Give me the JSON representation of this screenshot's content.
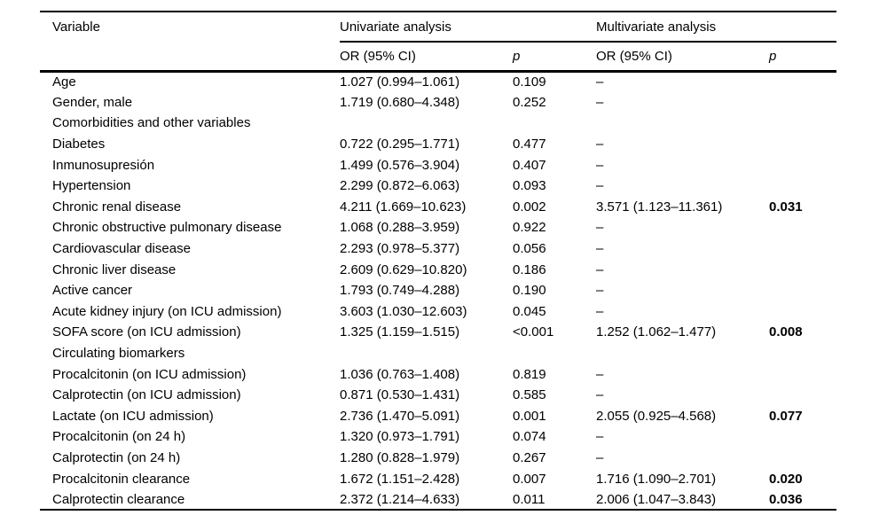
{
  "page": {
    "background": "#ffffff",
    "text_color": "#000000",
    "rule_color": "#000000"
  },
  "table": {
    "header": {
      "variable": "Variable",
      "univariate_group": "Univariate analysis",
      "multivariate_group": "Multivariate analysis",
      "or_label": "OR (95% CI)",
      "p_label": "p"
    },
    "rows": [
      {
        "variable": "Age",
        "uni_or": "1.027 (0.994–1.061)",
        "uni_p": "0.109",
        "multi_or": "–",
        "multi_p": ""
      },
      {
        "variable": "Gender, male",
        "uni_or": "1.719 (0.680–4.348)",
        "uni_p": "0.252",
        "multi_or": "–",
        "multi_p": ""
      },
      {
        "variable": "Comorbidities and other variables",
        "section": true
      },
      {
        "variable": "Diabetes",
        "uni_or": "0.722 (0.295–1.771)",
        "uni_p": "0.477",
        "multi_or": "–",
        "multi_p": ""
      },
      {
        "variable": "Inmunosupresión",
        "uni_or": "1.499 (0.576–3.904)",
        "uni_p": "0.407",
        "multi_or": "–",
        "multi_p": ""
      },
      {
        "variable": "Hypertension",
        "uni_or": "2.299 (0.872–6.063)",
        "uni_p": "0.093",
        "multi_or": "–",
        "multi_p": ""
      },
      {
        "variable": "Chronic renal disease",
        "uni_or": "4.211 (1.669–10.623)",
        "uni_p": "0.002",
        "multi_or": "3.571 (1.123–11.361)",
        "multi_p": "0.031"
      },
      {
        "variable": "Chronic obstructive pulmonary disease",
        "uni_or": "1.068 (0.288–3.959)",
        "uni_p": "0.922",
        "multi_or": "–",
        "multi_p": ""
      },
      {
        "variable": "Cardiovascular disease",
        "uni_or": "2.293 (0.978–5.377)",
        "uni_p": "0.056",
        "multi_or": "–",
        "multi_p": ""
      },
      {
        "variable": "Chronic liver disease",
        "uni_or": "2.609 (0.629–10.820)",
        "uni_p": "0.186",
        "multi_or": "–",
        "multi_p": ""
      },
      {
        "variable": "Active cancer",
        "uni_or": "1.793 (0.749–4.288)",
        "uni_p": "0.190",
        "multi_or": "–",
        "multi_p": ""
      },
      {
        "variable": "Acute kidney injury (on ICU admission)",
        "uni_or": "3.603 (1.030–12.603)",
        "uni_p": "0.045",
        "multi_or": "–",
        "multi_p": ""
      },
      {
        "variable": "SOFA score (on ICU admission)",
        "uni_or": "1.325 (1.159–1.515)",
        "uni_p": "<0.001",
        "multi_or": "1.252 (1.062–1.477)",
        "multi_p": "0.008"
      },
      {
        "variable": "Circulating biomarkers",
        "section": true
      },
      {
        "variable": "Procalcitonin (on ICU admission)",
        "uni_or": "1.036 (0.763–1.408)",
        "uni_p": "0.819",
        "multi_or": "–",
        "multi_p": ""
      },
      {
        "variable": "Calprotectin (on ICU admission)",
        "uni_or": "0.871 (0.530–1.431)",
        "uni_p": "0.585",
        "multi_or": "–",
        "multi_p": ""
      },
      {
        "variable": "Lactate (on ICU admission)",
        "uni_or": "2.736 (1.470–5.091)",
        "uni_p": "0.001",
        "multi_or": "2.055 (0.925–4.568)",
        "multi_p": "0.077"
      },
      {
        "variable": "Procalcitonin (on 24 h)",
        "uni_or": "1.320 (0.973–1.791)",
        "uni_p": "0.074",
        "multi_or": "–",
        "multi_p": ""
      },
      {
        "variable": "Calprotectin (on 24 h)",
        "uni_or": "1.280 (0.828–1.979)",
        "uni_p": "0.267",
        "multi_or": "–",
        "multi_p": ""
      },
      {
        "variable": "Procalcitonin clearance",
        "uni_or": "1.672 (1.151–2.428)",
        "uni_p": "0.007",
        "multi_or": "1.716 (1.090–2.701)",
        "multi_p": "0.020"
      },
      {
        "variable": "Calprotectin clearance",
        "uni_or": "2.372 (1.214–4.633)",
        "uni_p": "0.011",
        "multi_or": "2.006 (1.047–3.843)",
        "multi_p": "0.036"
      }
    ]
  }
}
